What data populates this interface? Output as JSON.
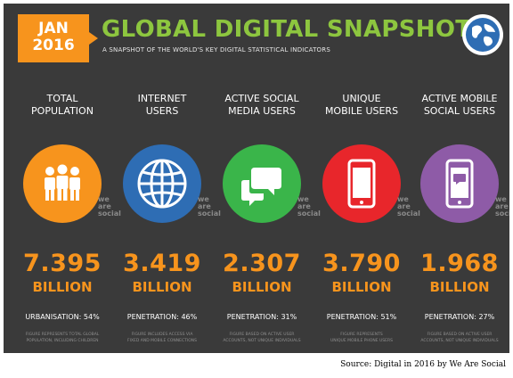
{
  "header": {
    "date_line1": "JAN",
    "date_line2": "2016",
    "title": "GLOBAL DIGITAL SNAPSHOT",
    "subtitle": "A SNAPSHOT OF THE WORLD'S KEY DIGITAL STATISTICAL INDICATORS"
  },
  "brand": {
    "line1": "we",
    "line2": "are",
    "line3": "social"
  },
  "colors": {
    "background": "#3a3a3a",
    "accent_orange": "#f7941d",
    "title_green": "#8dc63f",
    "population": "#f7941d",
    "internet": "#2e6db4",
    "social": "#3ab54a",
    "mobile": "#e8262b",
    "mobile_social": "#8e5ba7"
  },
  "columns": [
    {
      "label_line1": "TOTAL",
      "label_line2": "POPULATION",
      "icon": "people-icon",
      "value": "7.395",
      "unit": "BILLION",
      "stat": "URBANISATION: 54%",
      "note_line1": "FIGURE REPRESENTS TOTAL GLOBAL",
      "note_line2": "POPULATION, INCLUDING CHILDREN"
    },
    {
      "label_line1": "INTERNET",
      "label_line2": "USERS",
      "icon": "globe-icon",
      "value": "3.419",
      "unit": "BILLION",
      "stat": "PENETRATION: 46%",
      "note_line1": "FIGURE INCLUDES ACCESS VIA",
      "note_line2": "FIXED AND MOBILE CONNECTIONS"
    },
    {
      "label_line1": "ACTIVE SOCIAL",
      "label_line2": "MEDIA USERS",
      "icon": "chat-bubbles-icon",
      "value": "2.307",
      "unit": "BILLION",
      "stat": "PENETRATION: 31%",
      "note_line1": "FIGURE BASED ON ACTIVE USER",
      "note_line2": "ACCOUNTS, NOT UNIQUE INDIVIDUALS"
    },
    {
      "label_line1": "UNIQUE",
      "label_line2": "MOBILE USERS",
      "icon": "mobile-phone-icon",
      "value": "3.790",
      "unit": "BILLION",
      "stat": "PENETRATION: 51%",
      "note_line1": "FIGURE REPRESENTS",
      "note_line2": "UNIQUE MOBILE PHONE USERS"
    },
    {
      "label_line1": "ACTIVE MOBILE",
      "label_line2": "SOCIAL USERS",
      "icon": "mobile-chat-icon",
      "value": "1.968",
      "unit": "BILLION",
      "stat": "PENETRATION: 27%",
      "note_line1": "FIGURE BASED ON ACTIVE USER",
      "note_line2": "ACCOUNTS, NOT UNIQUE INDIVIDUALS"
    }
  ],
  "source": "Source: Digital in 2016 by We Are Social"
}
